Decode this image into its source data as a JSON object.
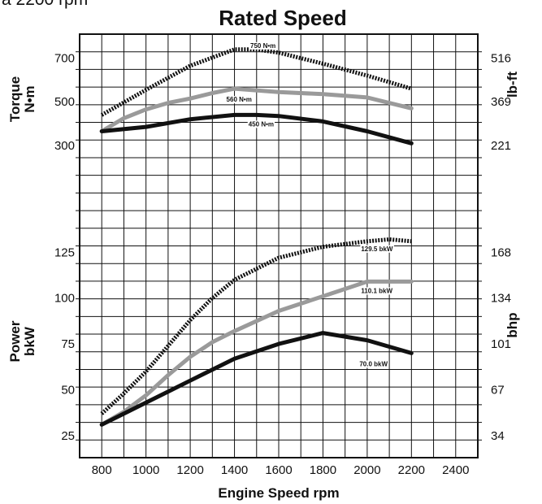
{
  "header_fragment": "a   2200 rpm",
  "chart_data": {
    "type": "line",
    "title": "Rated Speed",
    "xlabel": "Engine Speed rpm",
    "xlim": [
      700,
      2500
    ],
    "x_ticks": [
      "800",
      "1000",
      "1200",
      "1400",
      "1600",
      "1800",
      "2000",
      "2200",
      "2400"
    ],
    "grid": true,
    "panels": [
      {
        "name": "torque",
        "ylabel_left": [
          "Torque",
          "N•m"
        ],
        "ylabel_right": "lb-ft",
        "ylim": [
          -80,
          810
        ],
        "left_ticks": [
          "300",
          "500",
          "700"
        ],
        "right_ticks": [
          "221",
          "369",
          "516"
        ],
        "series": [
          {
            "label": "750 N•m",
            "color": "#111111",
            "style": "dotted",
            "x": [
              800,
              1000,
              1200,
              1400,
              1500,
              1600,
              1800,
              2000,
              2200
            ],
            "y": [
              440,
              555,
              665,
              740,
              740,
              725,
              675,
              620,
              560
            ]
          },
          {
            "label": "560 N•m",
            "color": "#9a9a9a",
            "style": "solid",
            "x": [
              800,
              900,
              1000,
              1100,
              1200,
              1300,
              1400,
              1600,
              1800,
              2000,
              2200
            ],
            "y": [
              365,
              425,
              465,
              495,
              515,
              540,
              560,
              545,
              535,
              520,
              470
            ]
          },
          {
            "label": "450 N•m",
            "color": "#111111",
            "style": "solid",
            "x": [
              800,
              1000,
              1200,
              1400,
              1500,
              1600,
              1800,
              2000,
              2200
            ],
            "y": [
              365,
              385,
              420,
              440,
              440,
              435,
              410,
              365,
              310
            ]
          }
        ]
      },
      {
        "name": "power",
        "ylabel_left": [
          "Power",
          "bkW"
        ],
        "ylabel_right": "bhp",
        "ylim": [
          13,
          138
        ],
        "left_ticks": [
          "25",
          "50",
          "75",
          "100",
          "125"
        ],
        "right_ticks": [
          "34",
          "67",
          "101",
          "134",
          "168"
        ],
        "series": [
          {
            "label": "129.5 bkW",
            "color": "#111111",
            "style": "dotted",
            "x": [
              800,
              900,
              1000,
              1100,
              1200,
              1300,
              1400,
              1600,
              1800,
              2000,
              2100,
              2200
            ],
            "y": [
              37,
              48,
              60,
              74,
              88,
              100,
              110,
              122,
              128,
              131,
              132,
              131
            ]
          },
          {
            "label": "110.1 bkW",
            "color": "#9a9a9a",
            "style": "solid",
            "x": [
              800,
              900,
              1000,
              1100,
              1200,
              1300,
              1400,
              1600,
              1800,
              2000,
              2200
            ],
            "y": [
              31,
              38,
              47,
              58,
              68,
              76,
              82,
              93,
              101,
              109,
              109
            ]
          },
          {
            "label": "70.0 bkW",
            "color": "#111111",
            "style": "solid",
            "x": [
              800,
              900,
              1000,
              1100,
              1200,
              1300,
              1400,
              1600,
              1800,
              2000,
              2200
            ],
            "y": [
              31,
              37,
              43,
              49,
              55,
              61,
              67,
              75,
              81,
              77,
              70
            ]
          }
        ]
      }
    ]
  }
}
